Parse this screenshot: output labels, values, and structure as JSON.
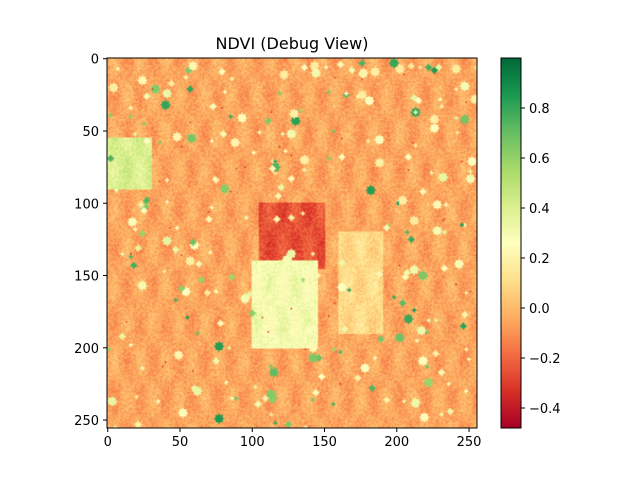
{
  "chart_data": {
    "type": "heatmap",
    "title": "NDVI (Debug View)",
    "xlabel": "",
    "ylabel": "",
    "image_size": [
      256,
      256
    ],
    "xlim": [
      0,
      255
    ],
    "ylim": [
      255,
      0
    ],
    "x_ticks": [
      0,
      50,
      100,
      150,
      200,
      250
    ],
    "y_ticks": [
      0,
      50,
      100,
      150,
      200,
      250
    ],
    "colormap": "RdYlGn",
    "colorbar": {
      "vmin": -0.48,
      "vmax": 1.0,
      "ticks": [
        -0.4,
        -0.2,
        0.0,
        0.2,
        0.4,
        0.6,
        0.8
      ],
      "tick_labels": [
        "−0.4",
        "−0.2",
        "0.0",
        "0.2",
        "0.4",
        "0.6",
        "0.8"
      ]
    },
    "regions": [
      {
        "label": "background field",
        "x": [
          0,
          255
        ],
        "y": [
          0,
          255
        ],
        "ndvi": -0.05
      },
      {
        "label": "dark rectangle",
        "x": [
          105,
          150
        ],
        "y": [
          100,
          145
        ],
        "ndvi": -0.25
      },
      {
        "label": "light green field",
        "x": [
          100,
          145
        ],
        "y": [
          140,
          200
        ],
        "ndvi": 0.3
      },
      {
        "label": "left green patch",
        "x": [
          0,
          30
        ],
        "y": [
          55,
          90
        ],
        "ndvi": 0.4
      },
      {
        "label": "light field right",
        "x": [
          160,
          190
        ],
        "y": [
          120,
          190
        ],
        "ndvi": 0.1
      }
    ]
  }
}
